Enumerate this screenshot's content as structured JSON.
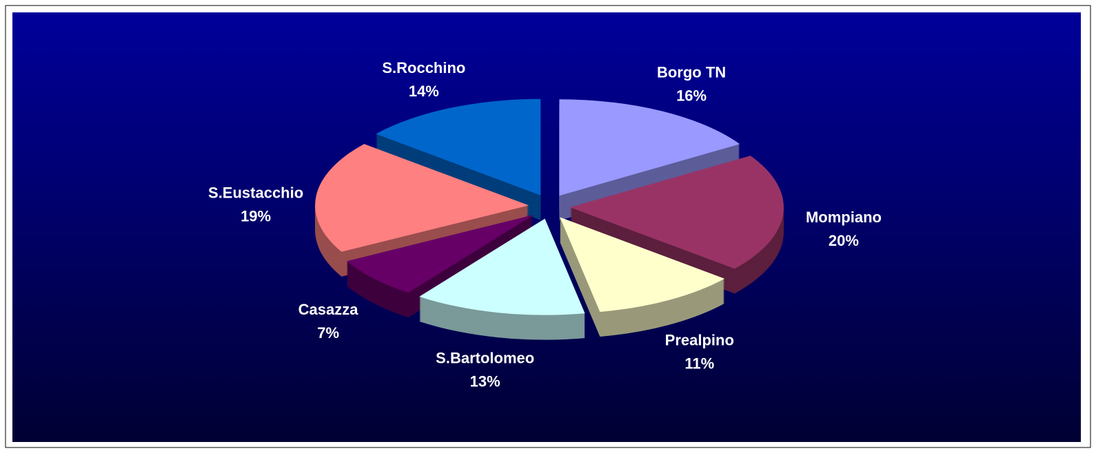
{
  "chart_data": {
    "type": "pie",
    "categories": [
      "Borgo TN",
      "Mompiano",
      "Prealpino",
      "S.Bartolomeo",
      "Casazza",
      "S.Eustacchio",
      "S.Rocchino"
    ],
    "values": [
      16,
      20,
      11,
      13,
      7,
      19,
      14
    ],
    "value_labels": [
      "16%",
      "20%",
      "11%",
      "13%",
      "7%",
      "19%",
      "14%"
    ],
    "colors": [
      "#9999ff",
      "#993366",
      "#ffffcc",
      "#ccffff",
      "#660066",
      "#ff8080",
      "#0066cc"
    ]
  }
}
